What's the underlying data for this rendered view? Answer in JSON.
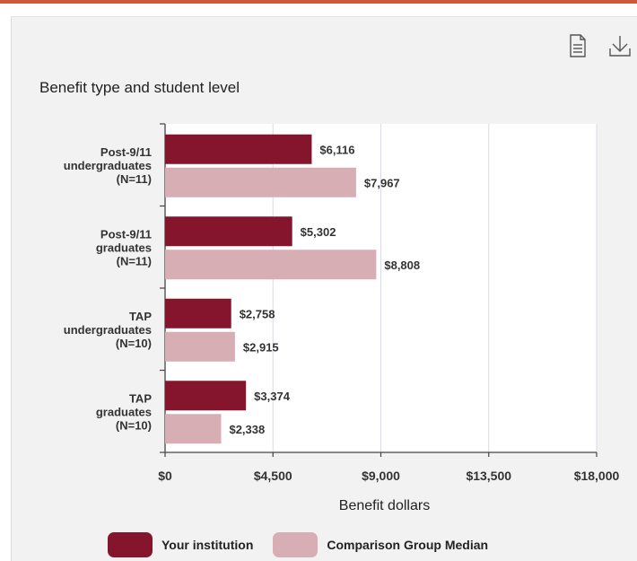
{
  "toolbar": {
    "items": [
      {
        "icon": "document-icon",
        "label": ""
      },
      {
        "icon": "download-icon",
        "label": ""
      }
    ]
  },
  "chart_data": {
    "type": "bar",
    "orientation": "horizontal",
    "title": "Benefit type and student level",
    "xlabel": "Benefit dollars",
    "ylabel": "",
    "xlim": [
      0,
      18000
    ],
    "ticks": [
      "$0",
      "$4,500",
      "$9,000",
      "$13,500",
      "$18,000"
    ],
    "tick_values": [
      0,
      4500,
      9000,
      13500,
      18000
    ],
    "grid": true,
    "legend_position": "bottom",
    "categories": [
      [
        "Post-9/11",
        "undergraduates",
        "(N=11)"
      ],
      [
        "Post-9/11",
        "graduates",
        "(N=11)"
      ],
      [
        "TAP",
        "undergraduates",
        "(N=10)"
      ],
      [
        "TAP",
        "graduates",
        "(N=10)"
      ]
    ],
    "series": [
      {
        "name": "Your institution",
        "color": "#85152d",
        "values": [
          6116,
          5302,
          2758,
          3374
        ],
        "labels": [
          "$6,116",
          "$5,302",
          "$2,758",
          "$3,374"
        ]
      },
      {
        "name": "Comparison Group Median",
        "color": "#d8aeb5",
        "values": [
          7967,
          8808,
          2915,
          2338
        ],
        "labels": [
          "$7,967",
          "$8,808",
          "$2,915",
          "$2,338"
        ]
      }
    ]
  }
}
